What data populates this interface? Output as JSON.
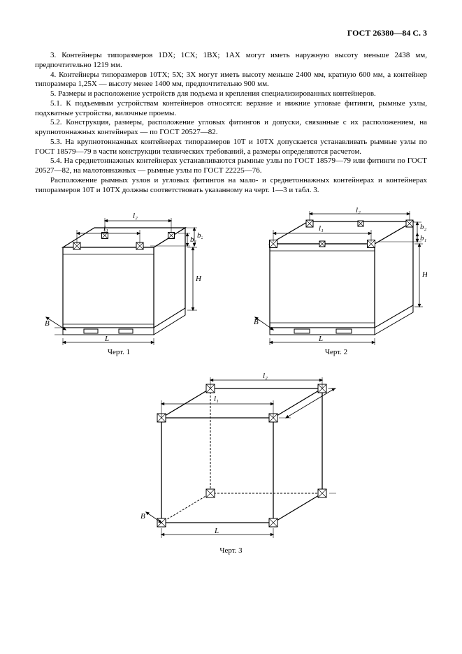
{
  "header": "ГОСТ 26380—84 С. 3",
  "paragraphs": {
    "p3": "3. Контейнеры типоразмеров 1DX; 1CX; 1BX; 1AX могут иметь наружную высоту меньше 2438 мм, предпочтительно 1219 мм.",
    "p4": "4. Контейнеры типоразмеров 10TX; 5X; 3X могут иметь высоту меньше 2400 мм, кратную 600 мм, а контейнер типоразмера 1,25X — высоту менее 1400 мм, предпочтительно 900 мм.",
    "p5": "5. Размеры и расположение устройств для подъема и крепления специализированных контейнеров.",
    "p51": "5.1. К подъемным устройствам контейнеров относятся: верхние и нижние угловые фитинги, рымные узлы, подхватные устройства, вилочные проемы.",
    "p52": "5.2. Конструкция, размеры, расположение угловых фитингов и допуски, связанные с их расположением, на крупнотоннажных контейнерах — по ГОСТ 20527—82.",
    "p53": "5.3. На крупнотоннажных контейнерах типоразмеров 10T и 10TX допускается устанавливать рымные узлы по ГОСТ 18579—79 в части конструкции технических требований, а размеры определяются расчетом.",
    "p54": "5.4. На среднетоннажных контейнерах устанавливаются рымные узлы по ГОСТ 18579—79 или фитинги по ГОСТ 20527—82, на малотоннажных — рымные узлы по ГОСТ 22225—76.",
    "p55": "Расположение рымных узлов и угловых фитингов на мало- и среднетоннажных контейнерах и контейнерах типоразмеров 10T и 10TX должны соответствовать указанному на черт. 1—3 и табл. 3."
  },
  "captions": {
    "c1": "Черт. 1",
    "c2": "Черт. 2",
    "c3": "Черт. 3"
  },
  "diagrams": {
    "stroke": "#000000",
    "fill": "#ffffff",
    "hatch": "#000000",
    "label_font": "italic 10px Times",
    "labels": {
      "L": "L",
      "B": "B",
      "H": "H",
      "l1": "l₁",
      "l2": "l₂",
      "b1": "b₁",
      "b2": "b₂"
    }
  }
}
